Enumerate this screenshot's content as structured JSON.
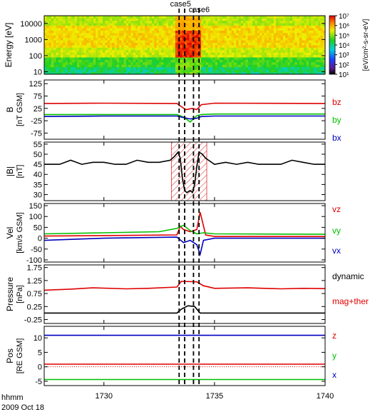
{
  "chart_data": {
    "type": "line",
    "event_labels": [
      "case5",
      "case6"
    ],
    "event_times": [
      1733.4,
      1733.65,
      1734.05,
      1734.3
    ],
    "x": {
      "ticks": [
        1730,
        1735,
        1740
      ],
      "tick_labels": [
        "1730",
        "1735",
        "1740"
      ],
      "range": [
        1727.3,
        1740.0
      ],
      "label_line1": "hhmm",
      "label_line2": "2009 Oct 18"
    },
    "panels": [
      {
        "id": "energy",
        "type": "heatmap",
        "ylabel": "Energy [eV]",
        "ylog": true,
        "ylim": [
          7,
          30000
        ],
        "yticks": [
          10,
          100,
          1000,
          10000
        ],
        "ytick_labels": [
          "10",
          "100",
          "1000",
          "10000"
        ],
        "colorbar": {
          "range_log10": [
            1,
            7
          ],
          "tick_labels": [
            "10⁷",
            "10⁶",
            "10⁵",
            "10⁴",
            "10³",
            "10²",
            "10¹"
          ],
          "label": "[eV/cm²-s-sr-eV]"
        }
      },
      {
        "id": "b",
        "ylabel_line1": "B",
        "ylabel_line2": "[nT GSM]",
        "ylim": [
          -100,
          140
        ],
        "yticks": [
          -75,
          -25,
          25,
          75,
          125
        ],
        "ytick_labels": [
          "-75",
          "-25",
          "25",
          "75",
          "125"
        ],
        "series": [
          {
            "name": "bz",
            "color": "#e00000",
            "x": [
              1727.3,
              1730,
              1733.3,
              1733.5,
              1733.7,
              1734.0,
              1734.2,
              1734.4,
              1735,
              1740
            ],
            "y": [
              45,
              46,
              45,
              32,
              20,
              25,
              20,
              40,
              46,
              45
            ]
          },
          {
            "name": "by",
            "color": "#00c000",
            "x": [
              1727.3,
              1730,
              1733.3,
              1733.6,
              1733.9,
              1734.2,
              1734.4,
              1735,
              1740
            ],
            "y": [
              0,
              0,
              0,
              -10,
              -30,
              -5,
              0,
              2,
              2
            ]
          },
          {
            "name": "bx",
            "color": "#0000c0",
            "x": [
              1727.3,
              1730,
              1733.3,
              1733.6,
              1733.9,
              1734.2,
              1734.4,
              1735,
              1740
            ],
            "y": [
              -8,
              -6,
              -6,
              -12,
              -18,
              -15,
              -8,
              -6,
              -6
            ]
          }
        ]
      },
      {
        "id": "bmag",
        "ylabel_line1": "|B|",
        "ylabel_line2": "[nT]",
        "ylim": [
          27,
          56
        ],
        "yticks": [
          30,
          35,
          40,
          45,
          50,
          55
        ],
        "ytick_labels": [
          "30",
          "35",
          "40",
          "45",
          "50",
          "55"
        ],
        "hatch_x": [
          1733.05,
          1734.65
        ],
        "series": [
          {
            "name": "|B|",
            "color": "#000000",
            "x": [
              1727.3,
              1728,
              1728.5,
              1729,
              1729.5,
              1730,
              1730.5,
              1731,
              1731.5,
              1732,
              1732.5,
              1733,
              1733.2,
              1733.35,
              1733.45,
              1733.55,
              1733.65,
              1733.75,
              1733.9,
              1734.0,
              1734.1,
              1734.2,
              1734.3,
              1734.45,
              1734.6,
              1735,
              1735.5,
              1736,
              1736.5,
              1737,
              1737.5,
              1738,
              1738.5,
              1739,
              1739.5,
              1740
            ],
            "y": [
              45,
              45,
              47,
              45,
              46,
              46,
              45,
              45,
              47,
              46,
              46,
              47,
              49,
              51,
              48,
              38,
              32,
              31,
              32,
              31,
              35,
              44,
              51,
              50,
              48,
              45,
              46,
              45,
              46,
              45,
              45,
              45,
              47,
              46,
              45,
              45
            ]
          }
        ]
      },
      {
        "id": "vel",
        "ylabel_line1": "Vel",
        "ylabel_line2": "[km/s GSM]",
        "ylim": [
          -110,
          160
        ],
        "yticks": [
          -100,
          -50,
          0,
          50,
          100,
          150
        ],
        "ytick_labels": [
          "-100",
          "-50",
          "0",
          "50",
          "100",
          "150"
        ],
        "series": [
          {
            "name": "vz",
            "color": "#e00000",
            "x": [
              1727.3,
              1730,
              1733.3,
              1733.45,
              1733.6,
              1733.9,
              1734.2,
              1734.35,
              1734.6,
              1735,
              1740
            ],
            "y": [
              10,
              12,
              15,
              55,
              40,
              30,
              40,
              120,
              15,
              8,
              8
            ]
          },
          {
            "name": "vy",
            "color": "#00c000",
            "x": [
              1727.3,
              1730,
              1732.5,
              1733.3,
              1733.6,
              1733.9,
              1734.2,
              1734.5,
              1735,
              1740
            ],
            "y": [
              20,
              25,
              30,
              45,
              60,
              35,
              20,
              25,
              20,
              18
            ]
          },
          {
            "name": "vx",
            "color": "#0000c0",
            "x": [
              1727.3,
              1730,
              1733.3,
              1733.6,
              1733.9,
              1734.2,
              1734.35,
              1734.5,
              1735,
              1740
            ],
            "y": [
              -10,
              0,
              5,
              -20,
              -10,
              -30,
              -75,
              -10,
              0,
              0
            ]
          }
        ]
      },
      {
        "id": "pressure",
        "ylabel_line1": "Pressure",
        "ylabel_line2": "[nPa]",
        "ylim": [
          -0.4,
          1.85
        ],
        "yticks": [
          -0.25,
          0.25,
          0.75,
          1.25,
          1.75
        ],
        "ytick_labels": [
          "-0.25",
          "0.25",
          "0.75",
          "1.25",
          "1.75"
        ],
        "series": [
          {
            "name": "dynamic",
            "color": "#000000",
            "x": [
              1727.3,
              1733.3,
              1733.5,
              1733.8,
              1734.1,
              1734.35,
              1740
            ],
            "y": [
              0.0,
              0.0,
              0.15,
              0.28,
              0.25,
              0.0,
              0.0
            ]
          },
          {
            "name": "mag+ther",
            "color": "#e00000",
            "x": [
              1727.3,
              1728.5,
              1729.5,
              1731,
              1732,
              1733.3,
              1733.5,
              1734.2,
              1734.5,
              1735,
              1736.5,
              1738,
              1739,
              1740
            ],
            "y": [
              0.88,
              0.92,
              0.97,
              0.93,
              0.95,
              1.0,
              1.22,
              1.2,
              1.05,
              0.95,
              0.97,
              0.93,
              0.95,
              0.94
            ]
          }
        ]
      },
      {
        "id": "pos",
        "ylabel_line1": "Pos",
        "ylabel_line2": "[RE GSM]",
        "ylim": [
          -6.5,
          14
        ],
        "yticks": [
          -5,
          0,
          5,
          10
        ],
        "ytick_labels": [
          "-5",
          "0",
          "5",
          "10"
        ],
        "zero_dotted": true,
        "series": [
          {
            "name": "z",
            "color": "#e00000",
            "x": [
              1727.3,
              1740
            ],
            "y": [
              0.9,
              0.9
            ]
          },
          {
            "name": "y",
            "color": "#00c000",
            "x": [
              1727.3,
              1740
            ],
            "y": [
              -4.4,
              -4.4
            ]
          },
          {
            "name": "x",
            "color": "#0000c0",
            "x": [
              1727.3,
              1740
            ],
            "y": [
              10.9,
              10.9
            ]
          }
        ]
      }
    ]
  }
}
